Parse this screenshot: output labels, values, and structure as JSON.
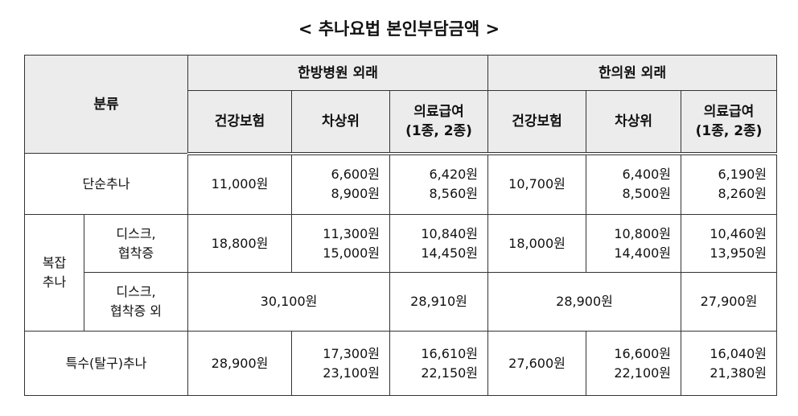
{
  "title": "< 추나요법 본인부담금액 >",
  "table": {
    "corner": "분류",
    "groups": [
      "한방병원 외래",
      "한의원 외래"
    ],
    "columns": [
      "건강보험",
      "차상위",
      "의료급여\n(1종, 2종)",
      "건강보험",
      "차상위",
      "의료급여\n(1종, 2종)"
    ],
    "group_label": "복잡\n추나",
    "rows": [
      {
        "label": "단순추나",
        "cells": [
          "11,000원",
          "6,600원\n8,900원",
          "6,420원\n8,560원",
          "10,700원",
          "6,400원\n8,500원",
          "6,190원\n8,260원"
        ]
      },
      {
        "label": "디스크,\n협착증",
        "cells": [
          "18,800원",
          "11,300원\n15,000원",
          "10,840원\n14,450원",
          "18,000원",
          "10,800원\n14,400원",
          "10,460원\n13,950원"
        ]
      },
      {
        "label": "디스크,\n협착증 외",
        "cells": [
          "30,100원",
          "28,910원",
          "28,900원",
          "27,900원"
        ]
      },
      {
        "label": "특수(탈구)추나",
        "cells": [
          "28,900원",
          "17,300원\n23,100원",
          "16,610원\n22,150원",
          "27,600원",
          "16,600원\n22,100원",
          "16,040원\n21,380원"
        ]
      }
    ]
  }
}
